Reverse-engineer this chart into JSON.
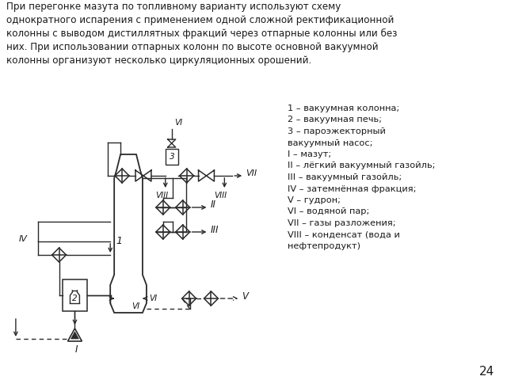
{
  "title_text": "При перегонке мазута по топливному варианту используют схему\nоднократного испарения с применением одной сложной ректификационной\nколонны с выводом дистиллятных фракций через отпарные колонны или без\nних. При использовании отпарных колонн по высоте основной вакуумной\nколонны организуют несколько циркуляционных орошений.",
  "legend_lines": [
    "1 – вакуумная колонна;",
    "2 – вакуумная печь;",
    "3 – пароэжекторный",
    "вакуумный насос;",
    "I – мазут;",
    "II – лёгкий вакуумный газойль;",
    "III – вакуумный газойль;",
    "IV – затемнённая фракция;",
    "V – гудрон;",
    "VI – водяной пар;",
    "VII – газы разложения;",
    "VIII – конденсат (вода и",
    "нефтепродукт)"
  ],
  "page_number": "24",
  "bg_color": "#ffffff",
  "line_color": "#2a2a2a",
  "text_color": "#1a1a1a"
}
